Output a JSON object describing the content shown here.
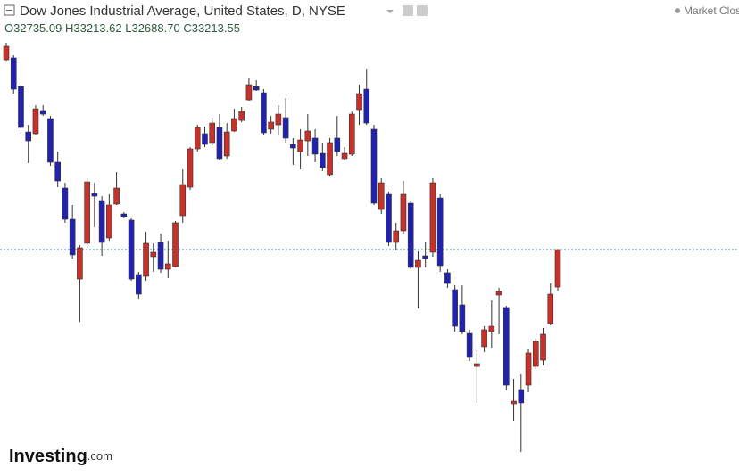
{
  "chart_data": {
    "type": "candlestick",
    "title": "Dow Jones Industrial Average, United States, D, NYSE",
    "status": "Market Clos",
    "legend": {
      "open": "O",
      "high": "H",
      "low": "L",
      "close": "C",
      "low_value_label": "32688.70"
    },
    "logo": {
      "name": "Investing",
      "suffix": ".com"
    },
    "up_color": "#c8302a",
    "down_color": "#2222b0",
    "last_line_color": "#4d8a9a",
    "ylim": [
      30480,
      35925
    ],
    "open": [
      35640,
      35663,
      35298,
      34717,
      34695,
      34991,
      34888,
      34330,
      34000,
      33601,
      32838,
      33294,
      33931,
      33840,
      33362,
      33795,
      33669,
      33590,
      32895,
      32872,
      33123,
      33305,
      32963,
      32997,
      33647,
      34011,
      34501,
      34695,
      34581,
      34774,
      34410,
      34729,
      34865,
      35127,
      35298,
      35218,
      34752,
      34808,
      34900,
      34558,
      34467,
      34603,
      34638,
      34444,
      34171,
      34638,
      34376,
      34433,
      35002,
      35264,
      34752,
      33726,
      33920,
      33305,
      33453,
      33806,
      32986,
      33134,
      33180,
      33874,
      32918,
      32701,
      32508,
      32143,
      31721,
      31973,
      32166,
      32633,
      32474,
      31243,
      31425,
      31482,
      31721,
      31801,
      32269,
      32735.09
    ],
    "high": [
      35856,
      35697,
      35321,
      34808,
      35059,
      35059,
      34922,
      34467,
      34068,
      33783,
      33271,
      34125,
      34068,
      33897,
      33920,
      34205,
      33692,
      33613,
      32929,
      33442,
      33294,
      33419,
      33328,
      33578,
      34239,
      34524,
      34808,
      34786,
      34900,
      34945,
      34831,
      35013,
      35036,
      35401,
      35378,
      35264,
      34922,
      35059,
      35150,
      34638,
      34752,
      34945,
      34752,
      34581,
      34638,
      34922,
      34524,
      34979,
      35321,
      35526,
      34808,
      34125,
      33954,
      33556,
      34091,
      33840,
      33191,
      33305,
      34125,
      33920,
      32963,
      32758,
      32758,
      32189,
      31927,
      32234,
      32565,
      32724,
      32496,
      31562,
      31619,
      31938,
      32075,
      32212,
      32781,
      33213.62
    ],
    "low": [
      35628,
      35207,
      34695,
      34319,
      34672,
      34922,
      34285,
      34011,
      33556,
      33100,
      32291,
      33237,
      33499,
      33134,
      33328,
      33783,
      33613,
      32815,
      32587,
      32815,
      32929,
      32918,
      32849,
      32986,
      33556,
      33977,
      34467,
      34524,
      34547,
      34353,
      34376,
      34717,
      34843,
      35116,
      35241,
      34672,
      34695,
      34672,
      34581,
      34296,
      34239,
      34410,
      34330,
      34216,
      34148,
      34410,
      34353,
      34410,
      34808,
      34808,
      33783,
      33669,
      33260,
      33203,
      33419,
      32963,
      32462,
      32986,
      33123,
      32929,
      32724,
      32166,
      32132,
      31790,
      31255,
      31904,
      31960,
      32132,
      31414,
      31027,
      30628,
      31391,
      31687,
      31733,
      32246,
      32688.7
    ],
    "close": [
      35811,
      35264,
      34774,
      34603,
      35013,
      34945,
      34330,
      34091,
      33601,
      33146,
      33237,
      34079,
      33897,
      33305,
      33783,
      34000,
      33635,
      32838,
      32644,
      33294,
      33180,
      32963,
      33032,
      33556,
      34045,
      34501,
      34774,
      34558,
      34831,
      34376,
      34717,
      34888,
      34979,
      35321,
      35253,
      34706,
      34843,
      34945,
      34638,
      34512,
      34615,
      34729,
      34433,
      34262,
      34581,
      34467,
      34444,
      34945,
      35207,
      34831,
      33806,
      34068,
      33305,
      33453,
      33920,
      32986,
      33077,
      33100,
      34068,
      33009,
      32781,
      32234,
      32166,
      31836,
      31756,
      32189,
      32234,
      32679,
      31482,
      31277,
      31255,
      31893,
      32041,
      32132,
      32644,
      33213.55
    ]
  }
}
